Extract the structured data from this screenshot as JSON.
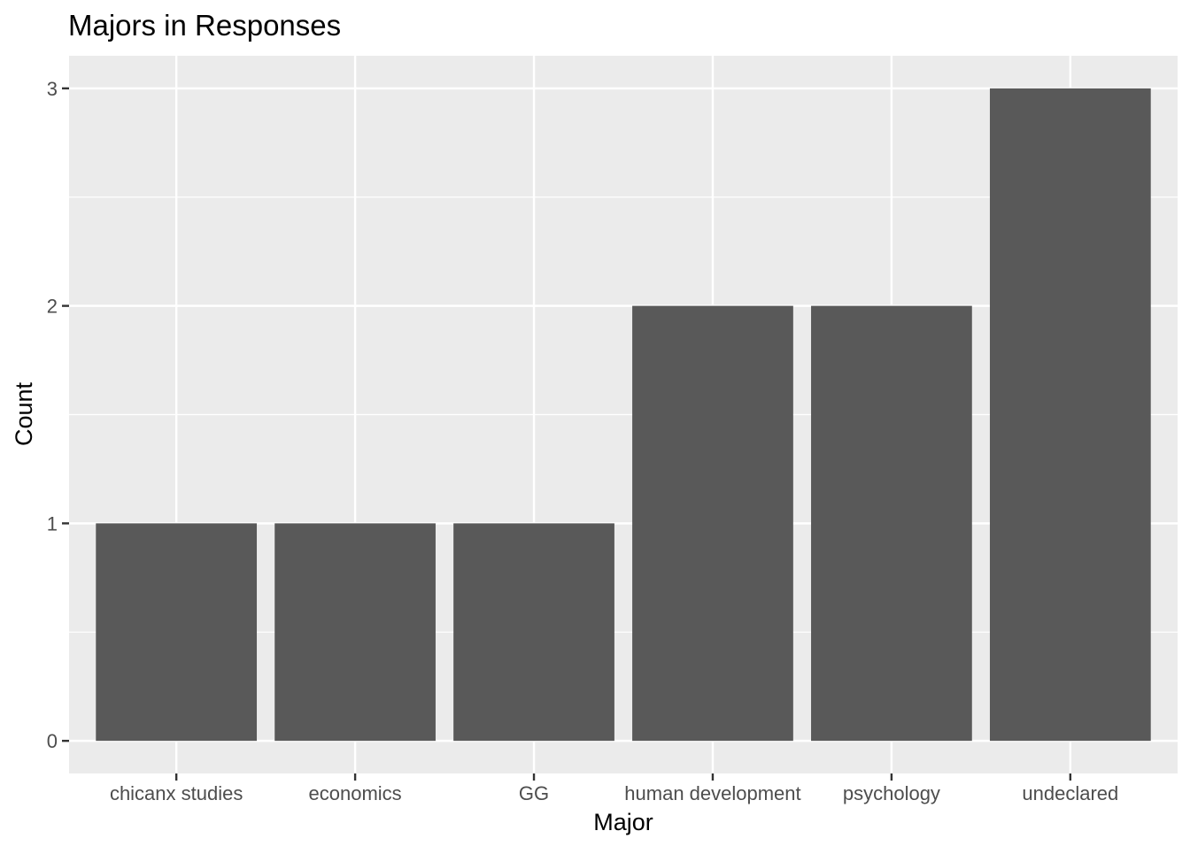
{
  "chart_data": {
    "type": "bar",
    "title": "Majors in Responses",
    "xlabel": "Major",
    "ylabel": "Count",
    "categories": [
      "chicanx studies",
      "economics",
      "GG",
      "human development",
      "psychology",
      "undeclared"
    ],
    "values": [
      1,
      1,
      1,
      2,
      2,
      3
    ],
    "ylim": [
      -0.15,
      3.15
    ],
    "yticks": [
      0,
      1,
      2,
      3
    ],
    "grid": true,
    "bar_color": "#595959",
    "panel_background": "#ebebeb",
    "grid_color": "#ffffff"
  }
}
